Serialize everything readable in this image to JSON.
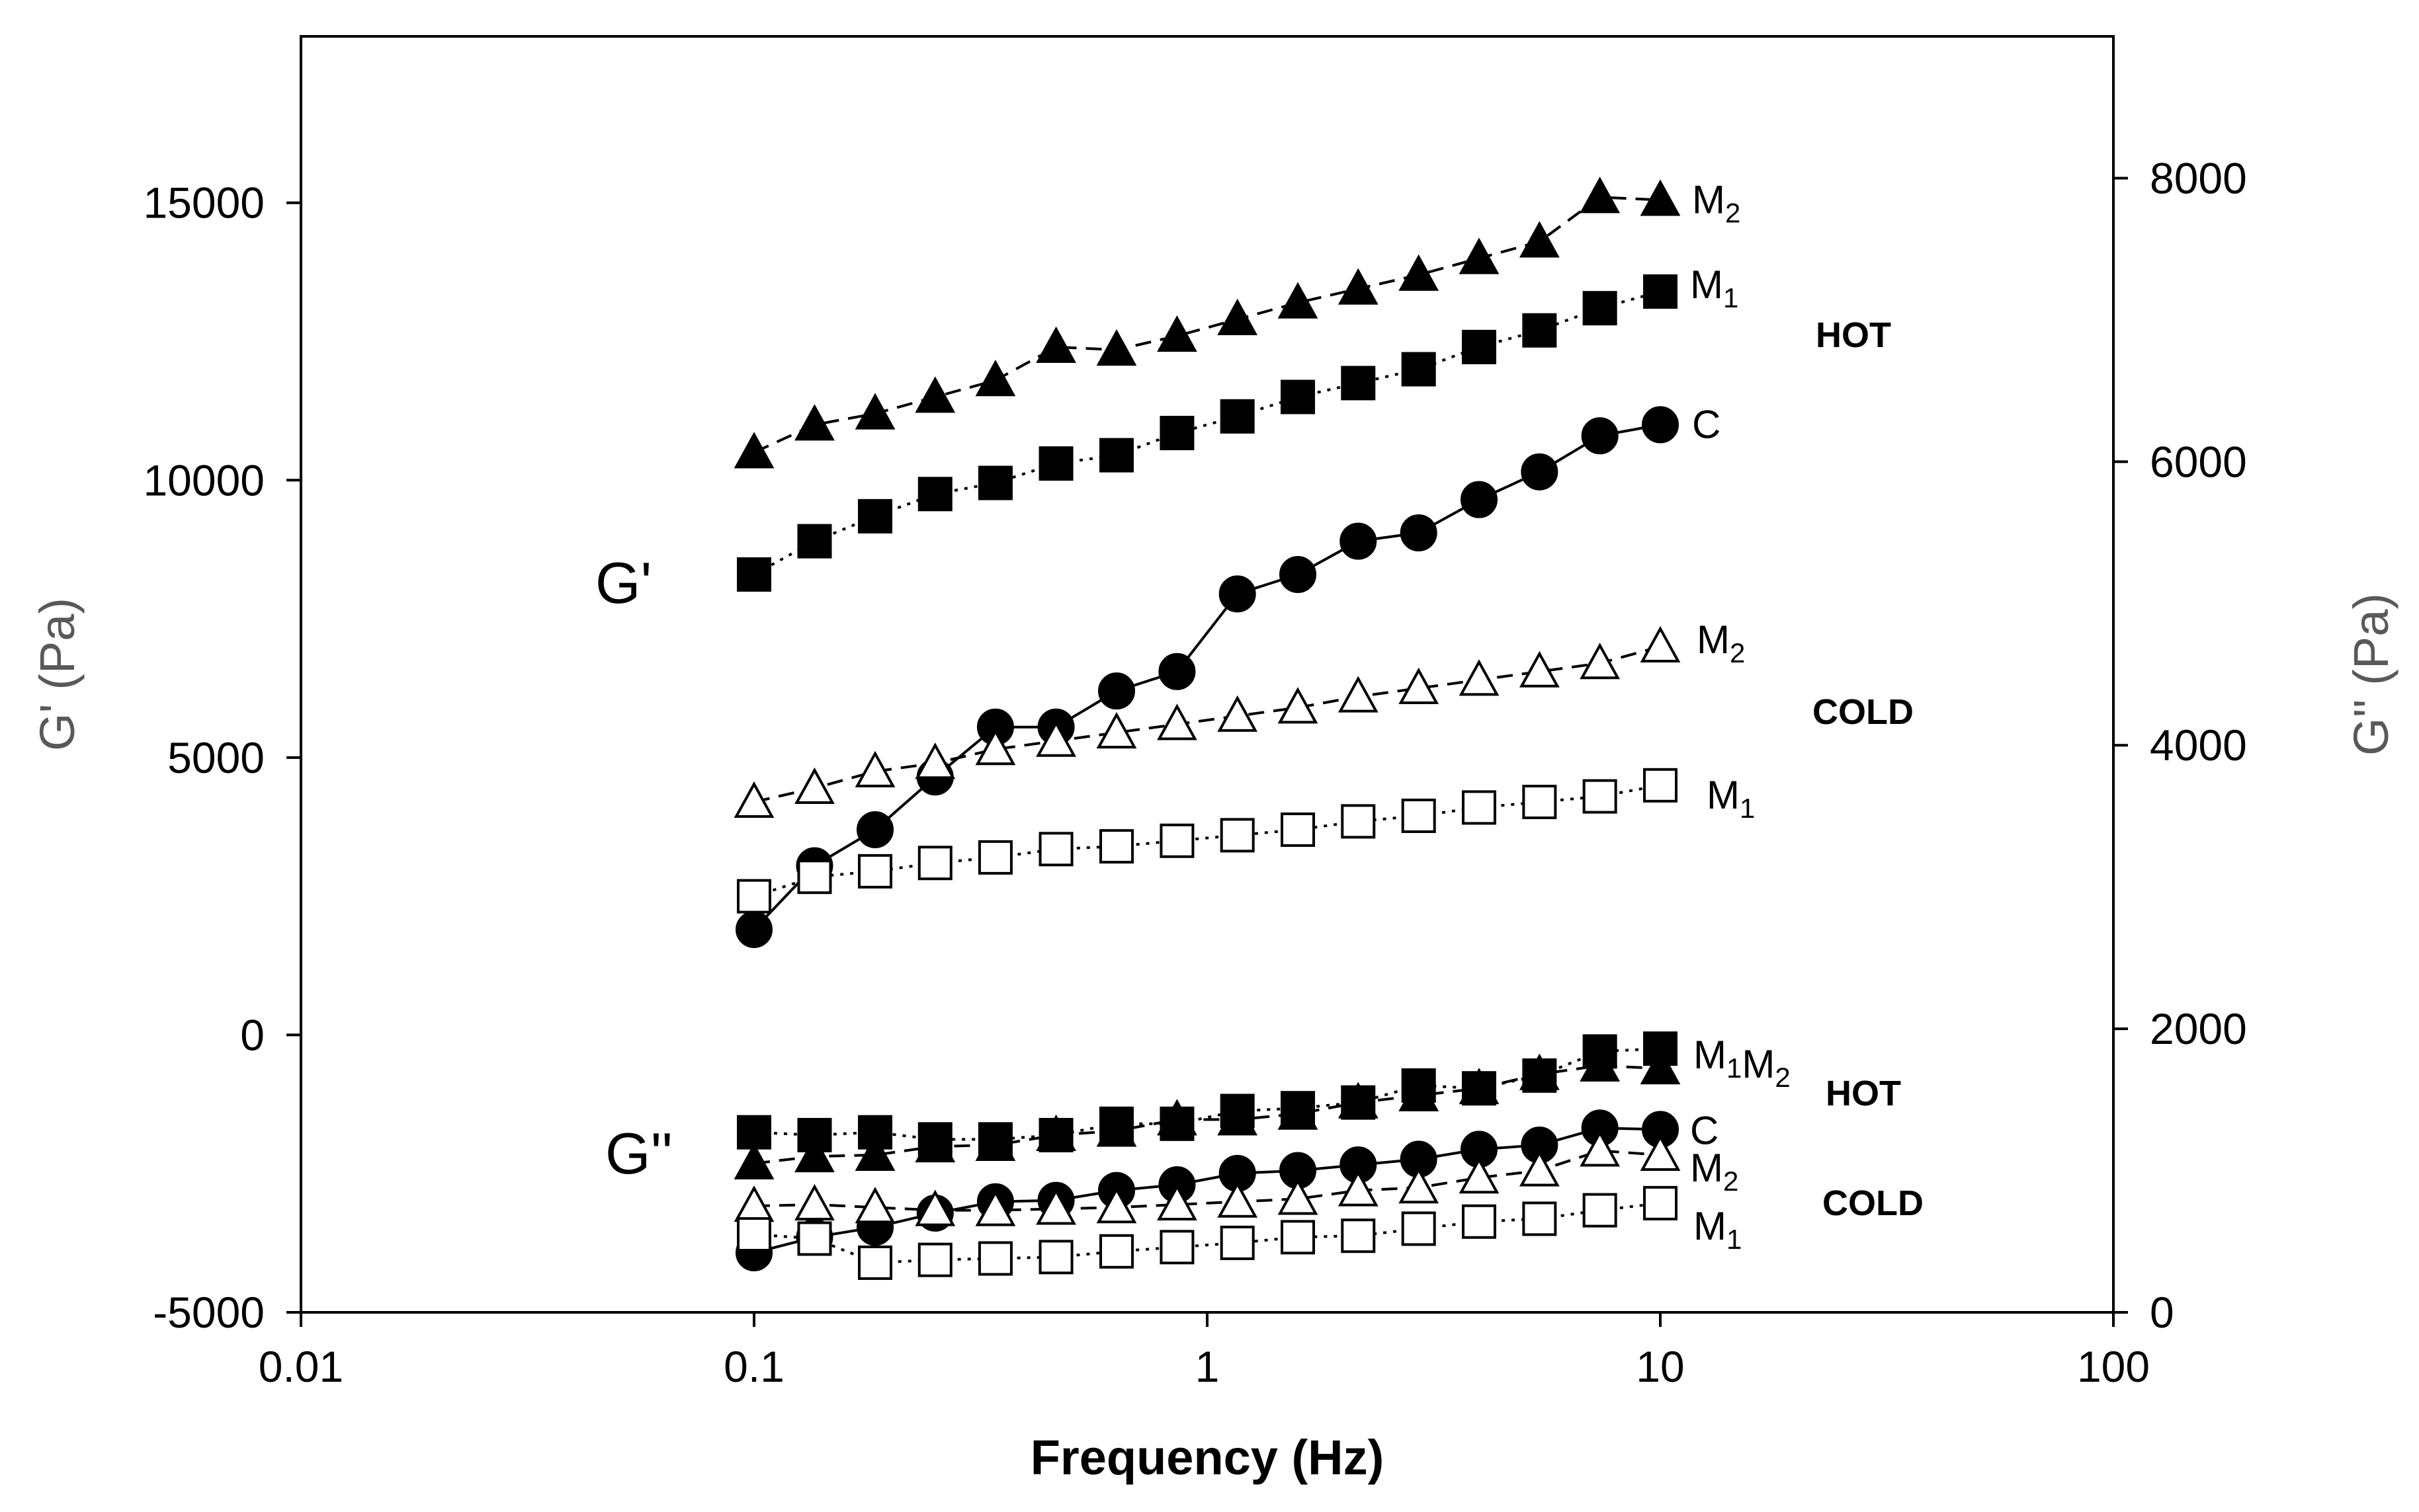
{
  "chart_data": {
    "type": "scatter",
    "xlabel": "Frequency (Hz)",
    "ylabel_left": "G' (Pa)",
    "ylabel_right": "G'' (Pa)",
    "x_scale": "log",
    "xlim": [
      0.01,
      100
    ],
    "ylim_left": [
      -5000,
      18000
    ],
    "ylim_right": [
      0,
      9000
    ],
    "x_ticks": [
      0.01,
      0.1,
      1,
      10,
      100
    ],
    "x_tick_labels": [
      "0.01",
      "0.1",
      "1",
      "10",
      "100"
    ],
    "y_left_ticks": [
      -5000,
      0,
      5000,
      10000,
      15000
    ],
    "y_left_tick_labels": [
      "-5000",
      "0",
      "5000",
      "10000",
      "15000"
    ],
    "y_right_ticks": [
      0,
      2000,
      4000,
      6000,
      8000
    ],
    "y_right_tick_labels": [
      "0",
      "2000",
      "4000",
      "6000",
      "8000"
    ],
    "group_labels": [
      "G'",
      "G''"
    ],
    "condition_labels": [
      "HOT",
      "COLD",
      "HOT",
      "COLD"
    ],
    "x": [
      0.1,
      0.136,
      0.185,
      0.251,
      0.341,
      0.464,
      0.631,
      0.858,
      1.166,
      1.585,
      2.154,
      2.929,
      3.981,
      5.412,
      7.356,
      10
    ],
    "series": [
      {
        "name": "M2",
        "group": "G'",
        "condition": "HOT",
        "marker": "filled-triangle",
        "line": "dashed",
        "values": [
          10500,
          11000,
          11200,
          11500,
          11800,
          12400,
          12350,
          12600,
          12900,
          13200,
          13450,
          13700,
          14000,
          14300,
          15100,
          15050
        ]
      },
      {
        "name": "M1",
        "group": "G'",
        "condition": "HOT",
        "marker": "filled-square",
        "line": "dotted",
        "values": [
          8300,
          8900,
          9350,
          9750,
          9950,
          10300,
          10450,
          10850,
          11150,
          11500,
          11750,
          12000,
          12400,
          12700,
          13100,
          13400
        ]
      },
      {
        "name": "C",
        "group": "G'",
        "condition": "",
        "marker": "filled-circle",
        "line": "solid",
        "values": [
          1900,
          3050,
          3700,
          4650,
          5550,
          5550,
          6200,
          6550,
          7950,
          8300,
          8900,
          9050,
          9650,
          10150,
          10800,
          11000
        ]
      },
      {
        "name": "M2",
        "group": "G'",
        "condition": "COLD",
        "marker": "open-triangle",
        "line": "dashed",
        "values": [
          4200,
          4450,
          4750,
          4900,
          5150,
          5300,
          5450,
          5600,
          5750,
          5900,
          6100,
          6250,
          6400,
          6550,
          6700,
          7000
        ]
      },
      {
        "name": "M1",
        "group": "G'",
        "condition": "COLD",
        "marker": "open-square",
        "line": "dotted",
        "values": [
          2500,
          2850,
          2950,
          3100,
          3200,
          3350,
          3400,
          3500,
          3600,
          3700,
          3850,
          3950,
          4100,
          4200,
          4300,
          4500
        ]
      },
      {
        "name": "M1",
        "group": "G''",
        "condition": "HOT",
        "marker": "filled-square",
        "line": "dotted",
        "values": [
          1270,
          1250,
          1270,
          1220,
          1220,
          1250,
          1330,
          1330,
          1420,
          1440,
          1480,
          1600,
          1580,
          1670,
          1840,
          1860
        ]
      },
      {
        "name": "M2",
        "group": "G''",
        "condition": "HOT",
        "marker": "filled-triangle",
        "line": "dashed",
        "values": [
          1050,
          1100,
          1110,
          1170,
          1180,
          1250,
          1280,
          1360,
          1360,
          1400,
          1480,
          1530,
          1580,
          1680,
          1740,
          1720
        ]
      },
      {
        "name": "C",
        "group": "G''",
        "condition": "",
        "marker": "filled-circle",
        "line": "solid",
        "values": [
          420,
          530,
          600,
          700,
          780,
          790,
          860,
          900,
          980,
          1000,
          1040,
          1080,
          1150,
          1180,
          1300,
          1290
        ]
      },
      {
        "name": "M2",
        "group": "G''",
        "condition": "COLD",
        "marker": "open-triangle",
        "line": "dashed",
        "values": [
          750,
          760,
          740,
          720,
          720,
          730,
          740,
          760,
          780,
          800,
          860,
          880,
          950,
          1000,
          1140,
          1110
        ]
      },
      {
        "name": "M1",
        "group": "G''",
        "condition": "COLD",
        "marker": "open-square",
        "line": "dotted",
        "values": [
          550,
          520,
          350,
          370,
          380,
          390,
          430,
          460,
          490,
          530,
          540,
          590,
          640,
          660,
          720,
          770
        ]
      }
    ],
    "annotations": [
      {
        "text": "M2",
        "series_index": 0
      },
      {
        "text": "M1",
        "series_index": 1
      },
      {
        "text": "C",
        "series_index": 2
      },
      {
        "text": "M2",
        "series_index": 3
      },
      {
        "text": "M1",
        "series_index": 4
      },
      {
        "text": "M1M2",
        "series_index": 5
      },
      {
        "text": "C",
        "series_index": 7
      },
      {
        "text": "M2",
        "series_index": 8
      },
      {
        "text": "M1",
        "series_index": 9
      }
    ]
  }
}
